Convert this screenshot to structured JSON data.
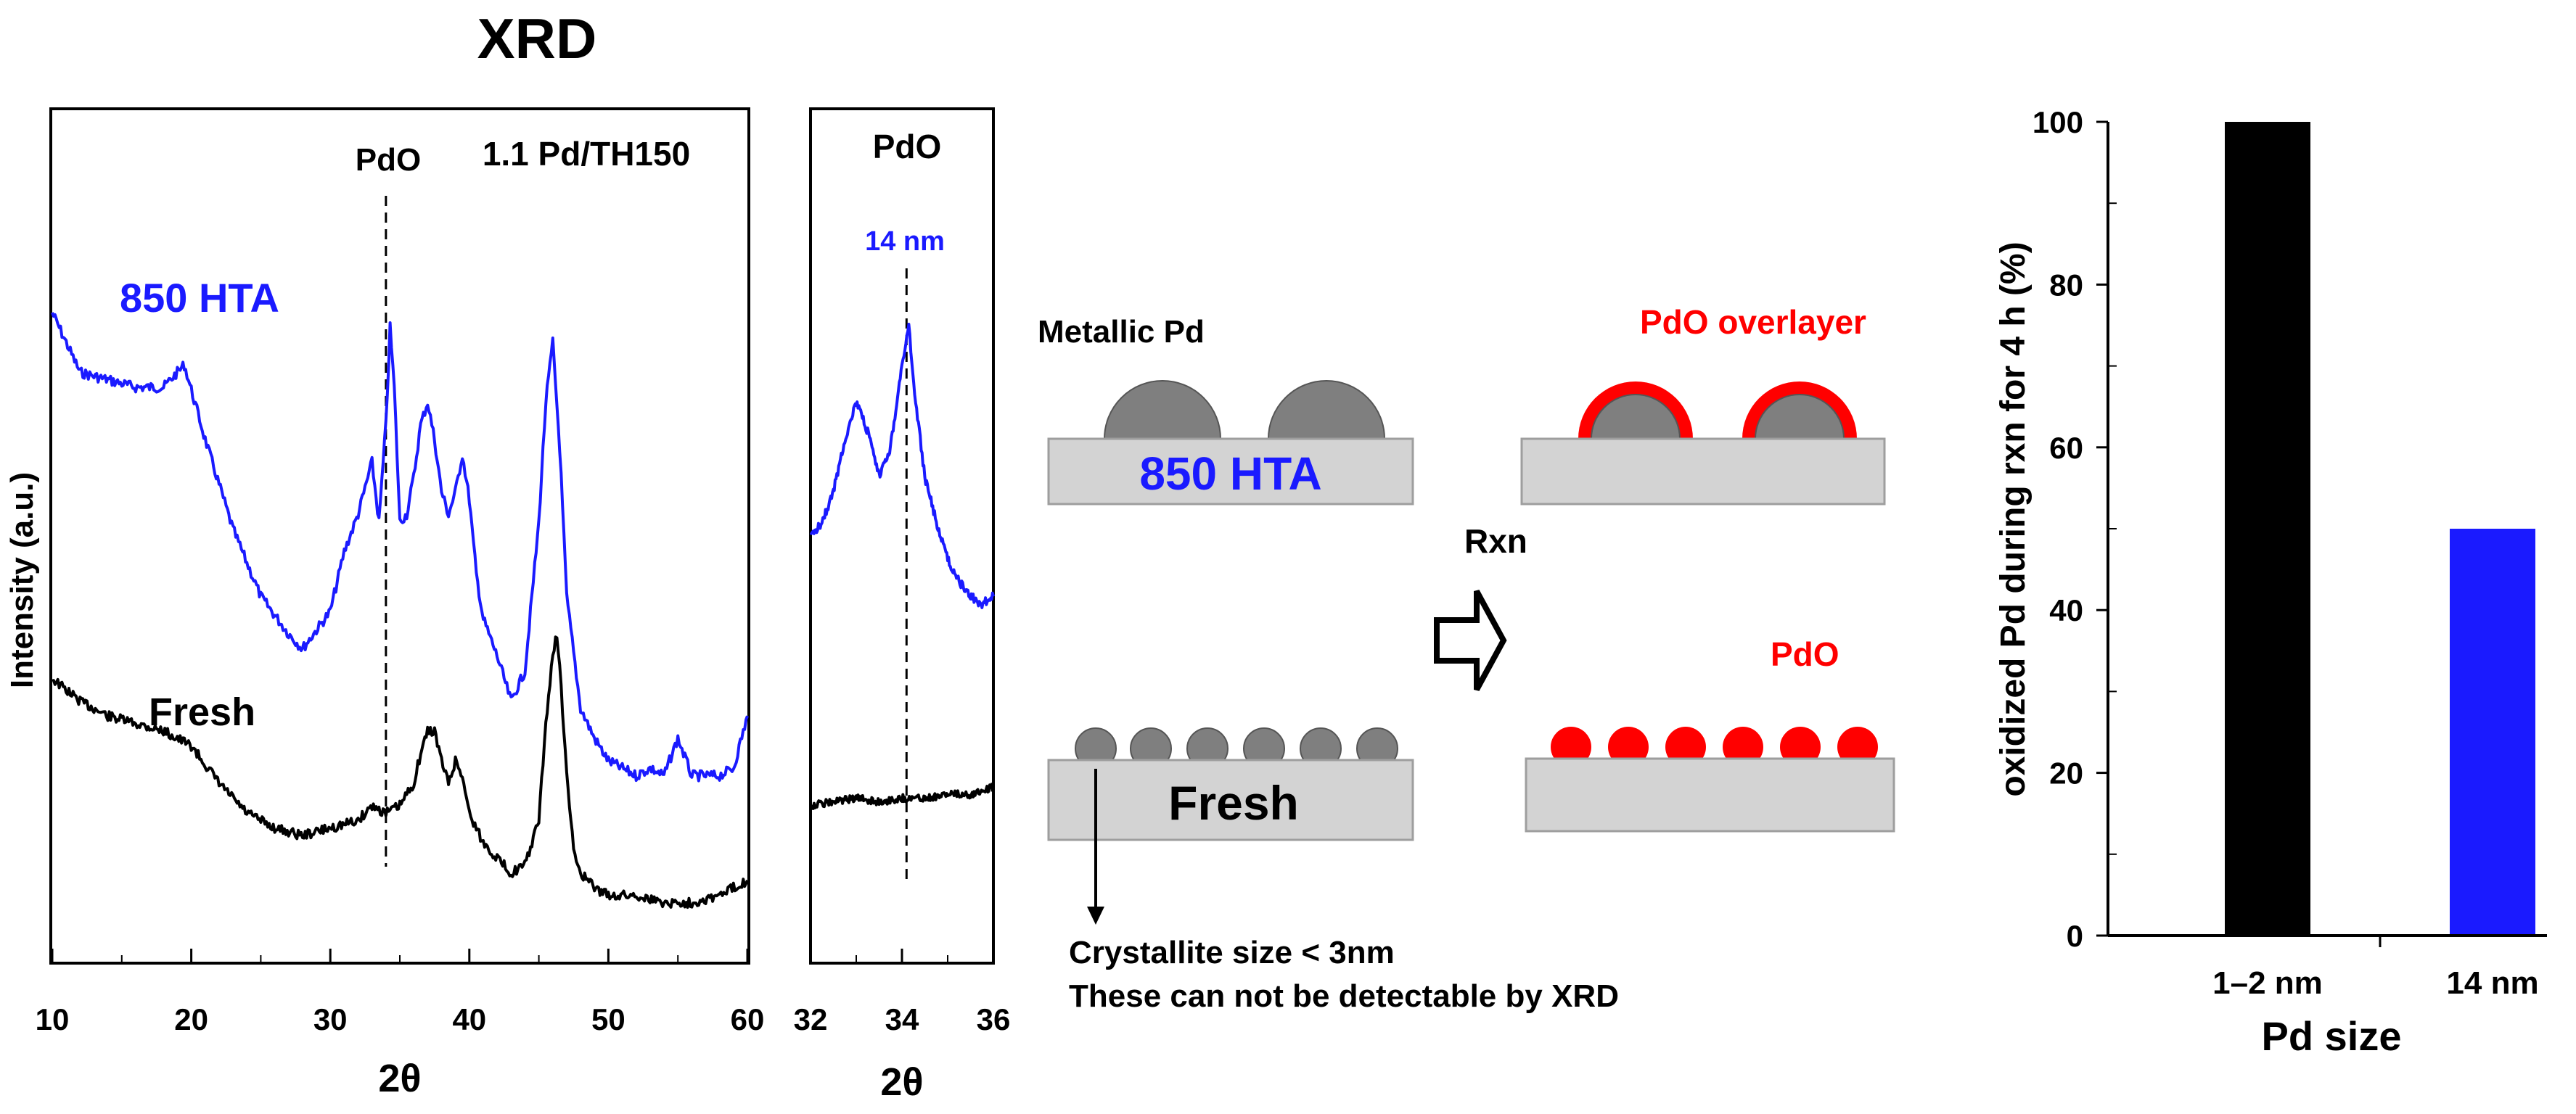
{
  "figure": {
    "title": "XRD",
    "intensity_label": "Intensity (a.u.)",
    "two_theta_label": "2θ",
    "sample_label": "1.1 Pd/TH150",
    "pdo_line_label": "PdO",
    "hta_label": "850 HTA",
    "fresh_label": "Fresh"
  },
  "inset": {
    "title": "PdO",
    "size_label": "14 nm",
    "xlabel": "2θ"
  },
  "schematic": {
    "metallic_label": "Metallic  Pd",
    "hta_label": "850 HTA",
    "fresh_label": "Fresh",
    "rxn_label": "Rxn",
    "overlayer_label": "PdO overlayer",
    "pdo_label": "PdO",
    "crystallite_note": "Crystallite  size < 3nm",
    "detect_note": "These can not be detectable  by XRD"
  },
  "colors": {
    "hta": "#1a1aff",
    "fresh": "#000000",
    "pdo": "#ff0000",
    "grey_particle": "#7f7f7f",
    "support": "#d3d3d3"
  },
  "chart_data": [
    {
      "type": "line",
      "title": "XRD",
      "xlabel": "2θ",
      "ylabel": "Intensity (a.u.)",
      "xlim": [
        10,
        60
      ],
      "xticks": [
        10,
        20,
        30,
        40,
        50,
        60
      ],
      "annotation": "1.1 Pd/TH150",
      "reference_line": {
        "x": 34,
        "label": "PdO"
      },
      "series": [
        {
          "name": "850 HTA",
          "color": "#1a1aff",
          "x": [
            10,
            12,
            14,
            16,
            18,
            19.5,
            21,
            23,
            25,
            27,
            28,
            30,
            31,
            32,
            33,
            33.5,
            34,
            34.3,
            34.6,
            35,
            35.5,
            36,
            36.5,
            37,
            37.5,
            38,
            38.5,
            39,
            39.5,
            40,
            40.5,
            41,
            42,
            43,
            44,
            45,
            45.5,
            46,
            46.5,
            47,
            48,
            49,
            50,
            51,
            52,
            53,
            54,
            55,
            56,
            57,
            58,
            59,
            60
          ],
          "y": [
            80,
            72,
            71,
            70,
            70,
            73,
            63,
            51,
            42,
            37,
            35,
            40,
            48,
            53,
            60,
            52,
            65,
            78,
            70,
            52,
            53,
            58,
            65,
            68,
            63,
            56,
            53,
            56,
            61,
            55,
            45,
            39,
            34,
            28,
            32,
            52,
            68,
            76,
            62,
            42,
            27,
            23,
            20,
            19,
            18,
            19,
            18,
            23,
            18,
            18,
            18,
            19,
            26
          ]
        },
        {
          "name": "Fresh",
          "color": "#000000",
          "x": [
            10,
            12,
            14,
            16,
            18,
            20,
            22,
            24,
            26,
            28,
            30,
            32,
            33,
            34,
            35,
            36,
            36.5,
            37,
            37.5,
            38,
            38.5,
            39,
            39.5,
            40,
            40.5,
            41,
            42,
            43,
            44,
            45,
            45.5,
            46,
            46.3,
            46.6,
            47,
            47.5,
            48,
            49,
            50,
            52,
            54,
            56,
            58,
            60
          ],
          "y": [
            31,
            28,
            26,
            25,
            24,
            22,
            17,
            13,
            11,
            10,
            11,
            12,
            14,
            13,
            14,
            17,
            21,
            24,
            24,
            20,
            17,
            20,
            18,
            13,
            11,
            9,
            7,
            5,
            6,
            12,
            25,
            34,
            37,
            30,
            18,
            8,
            5,
            3,
            2,
            2,
            1,
            1,
            2,
            4
          ]
        }
      ]
    },
    {
      "type": "line",
      "title": "PdO",
      "xlabel": "2θ",
      "xlim": [
        32,
        36
      ],
      "xticks": [
        32,
        34,
        36
      ],
      "annotation": "14 nm",
      "reference_line": {
        "x": 34.1
      },
      "series": [
        {
          "name": "850 HTA",
          "color": "#1a1aff",
          "x": [
            32,
            32.25,
            32.5,
            32.75,
            33,
            33.25,
            33.5,
            33.75,
            34,
            34.15,
            34.3,
            34.5,
            34.75,
            35,
            35.25,
            35.5,
            35.75,
            36
          ],
          "y": [
            50,
            52,
            56,
            63,
            68,
            64,
            58,
            62,
            73,
            78,
            68,
            58,
            52,
            47,
            44,
            42,
            41,
            42
          ]
        },
        {
          "name": "Fresh",
          "color": "#000000",
          "x": [
            32,
            32.5,
            33,
            33.5,
            34,
            34.5,
            35,
            35.5,
            36
          ],
          "y": [
            14,
            14.5,
            15,
            14.5,
            15,
            15,
            15.5,
            15.5,
            16.5
          ]
        }
      ]
    },
    {
      "type": "bar",
      "ylabel": "oxidized Pd during rxn for 4 h (%)",
      "xlabel": "Pd size",
      "categories": [
        "1–2 nm",
        "14 nm"
      ],
      "values": [
        100,
        50
      ],
      "colors": [
        "#000000",
        "#1a1aff"
      ],
      "ylim": [
        0,
        100
      ],
      "yticks": [
        0,
        20,
        40,
        60,
        80,
        100
      ]
    }
  ]
}
